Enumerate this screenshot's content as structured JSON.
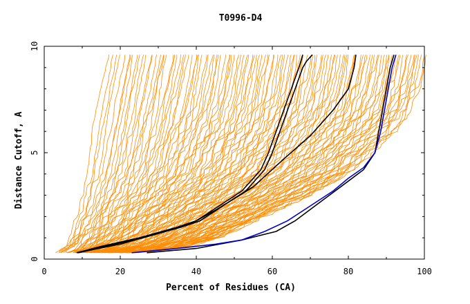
{
  "chart_data": {
    "type": "line",
    "title": "T0996-D4",
    "xlabel": "Percent of Residues (CA)",
    "ylabel": "Distance Cutoff, A",
    "xlim": [
      0,
      100
    ],
    "ylim": [
      0,
      10
    ],
    "xticks": [
      0,
      20,
      40,
      60,
      80,
      100
    ],
    "yticks": [
      0,
      5,
      10
    ],
    "xtick_labels": [
      "0",
      "20",
      "40",
      "60",
      "80",
      "100"
    ],
    "ytick_labels": [
      "0",
      "5",
      "10"
    ],
    "colors": {
      "background_series": "#ff8c00",
      "highlight": "#000000",
      "best": "#0000cc",
      "axis": "#000000"
    },
    "background_series_count": 120,
    "background_series_envelope": {
      "y": [
        0.3,
        0.5,
        1,
        2,
        3,
        4,
        5,
        6,
        7,
        8,
        9,
        9.6
      ],
      "x_min": [
        3.7,
        4.5,
        6,
        8,
        9.5,
        10.5,
        11,
        11.7,
        12.2,
        12.7,
        13.1,
        13.3
      ],
      "x_max": [
        24,
        36,
        46,
        58,
        70,
        80,
        86,
        92,
        96,
        98,
        99,
        99.3
      ]
    },
    "highlight_series": [
      {
        "name": "black-1",
        "color": "#000000",
        "points": [
          [
            8.5,
            0.3
          ],
          [
            15,
            0.6
          ],
          [
            25,
            1.0
          ],
          [
            35,
            1.5
          ],
          [
            40,
            1.8
          ],
          [
            46,
            2.5
          ],
          [
            52,
            3.2
          ],
          [
            57,
            4.2
          ],
          [
            59,
            5.0
          ],
          [
            61,
            6.0
          ],
          [
            63,
            7.0
          ],
          [
            65,
            8.0
          ],
          [
            67,
            9.0
          ],
          [
            67.5,
            9.3
          ],
          [
            68,
            9.6
          ]
        ]
      },
      {
        "name": "black-2",
        "color": "#000000",
        "points": [
          [
            9,
            0.3
          ],
          [
            16,
            0.6
          ],
          [
            26,
            1.0
          ],
          [
            36,
            1.5
          ],
          [
            41,
            1.8
          ],
          [
            47,
            2.5
          ],
          [
            53,
            3.2
          ],
          [
            58,
            4.2
          ],
          [
            60,
            5.0
          ],
          [
            62,
            6.0
          ],
          [
            64,
            7.0
          ],
          [
            66,
            8.0
          ],
          [
            68,
            9.0
          ],
          [
            69,
            9.3
          ],
          [
            70.5,
            9.6
          ]
        ]
      },
      {
        "name": "black-3",
        "color": "#000000",
        "points": [
          [
            8.8,
            0.3
          ],
          [
            20,
            0.7
          ],
          [
            30,
            1.2
          ],
          [
            40,
            1.8
          ],
          [
            46,
            2.4
          ],
          [
            55,
            3.4
          ],
          [
            63,
            4.7
          ],
          [
            70,
            5.8
          ],
          [
            76,
            7.0
          ],
          [
            80,
            8.0
          ],
          [
            81.5,
            9.0
          ],
          [
            82,
            9.6
          ]
        ]
      },
      {
        "name": "black-4",
        "color": "#000000",
        "points": [
          [
            27,
            0.3
          ],
          [
            40,
            0.5
          ],
          [
            52,
            0.9
          ],
          [
            61,
            1.3
          ],
          [
            66,
            1.8
          ],
          [
            72,
            2.6
          ],
          [
            78,
            3.4
          ],
          [
            84,
            4.2
          ],
          [
            87,
            5.0
          ],
          [
            88,
            6.0
          ],
          [
            89,
            7.0
          ],
          [
            90,
            8.0
          ],
          [
            91,
            9.0
          ],
          [
            92,
            9.6
          ]
        ]
      },
      {
        "name": "blue-best",
        "color": "#0000cc",
        "points": [
          [
            23,
            0.3
          ],
          [
            35,
            0.5
          ],
          [
            45,
            0.7
          ],
          [
            52,
            0.9
          ],
          [
            58,
            1.3
          ],
          [
            64,
            1.8
          ],
          [
            70,
            2.5
          ],
          [
            76,
            3.2
          ],
          [
            80,
            3.8
          ],
          [
            84,
            4.3
          ],
          [
            87,
            5.0
          ],
          [
            88.5,
            6.0
          ],
          [
            89.5,
            7.0
          ],
          [
            90.5,
            8.0
          ],
          [
            91.5,
            9.0
          ],
          [
            92.5,
            9.6
          ]
        ]
      }
    ]
  }
}
